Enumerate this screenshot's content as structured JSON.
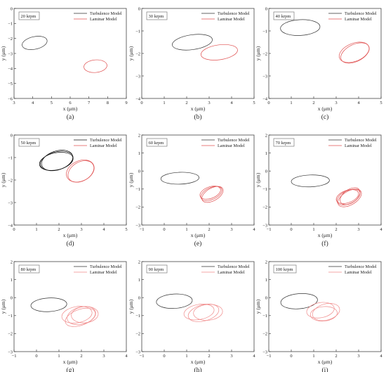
{
  "chart_data": [
    {
      "type": "line",
      "letter": "(a)",
      "speed": "20 krpm",
      "xlabel": "x (μm)",
      "ylabel": "y (μm)",
      "xlim": [
        3,
        9
      ],
      "ylim": [
        -6,
        0
      ],
      "xticks": [
        3,
        4,
        5,
        6,
        7,
        8,
        9
      ],
      "yticks": [
        0,
        -1,
        -2,
        -3,
        -4,
        -5,
        -6
      ],
      "series": [
        {
          "name": "Turbulence Model",
          "color": "#333333",
          "orbits": [
            {
              "cx": 4.1,
              "cy": -2.3,
              "rx": 0.68,
              "ry": 0.42,
              "rot": -12
            }
          ]
        },
        {
          "name": "Laminar Model",
          "color": "#e05050",
          "orbits": [
            {
              "cx": 7.35,
              "cy": -3.85,
              "rx": 0.62,
              "ry": 0.42,
              "rot": -5
            }
          ]
        }
      ]
    },
    {
      "type": "line",
      "letter": "(b)",
      "speed": "30 krpm",
      "xlabel": "x (μm)",
      "ylabel": "y (μm)",
      "xlim": [
        0,
        5
      ],
      "ylim": [
        -4,
        0
      ],
      "xticks": [
        0,
        1,
        2,
        3,
        4,
        5
      ],
      "yticks": [
        0,
        -1,
        -2,
        -3,
        -4
      ],
      "series": [
        {
          "name": "Turbulence Model",
          "color": "#333333",
          "orbits": [
            {
              "cx": 2.25,
              "cy": -1.5,
              "rx": 0.9,
              "ry": 0.33,
              "rot": -8
            }
          ]
        },
        {
          "name": "Laminar Model",
          "color": "#e05050",
          "orbits": [
            {
              "cx": 3.45,
              "cy": -1.95,
              "rx": 0.82,
              "ry": 0.33,
              "rot": -8
            }
          ]
        }
      ]
    },
    {
      "type": "line",
      "letter": "(c)",
      "speed": "40 krpm",
      "xlabel": "x (μm)",
      "ylabel": "y (μm)",
      "xlim": [
        0,
        5
      ],
      "ylim": [
        -4,
        0
      ],
      "xticks": [
        0,
        1,
        2,
        3,
        4,
        5
      ],
      "yticks": [
        0,
        -1,
        -2,
        -3,
        -4
      ],
      "series": [
        {
          "name": "Turbulence Model",
          "color": "#333333",
          "orbits": [
            {
              "cx": 1.4,
              "cy": -0.85,
              "rx": 0.88,
              "ry": 0.35,
              "rot": -3
            }
          ]
        },
        {
          "name": "Laminar Model",
          "color": "#e05050",
          "orbits": [
            {
              "cx": 3.8,
              "cy": -1.95,
              "rx": 0.7,
              "ry": 0.4,
              "rot": -22
            },
            {
              "cx": 3.84,
              "cy": -1.98,
              "rx": 0.68,
              "ry": 0.38,
              "rot": -26
            }
          ]
        }
      ]
    },
    {
      "type": "line",
      "letter": "(d)",
      "speed": "50 krpm",
      "xlabel": "x (μm)",
      "ylabel": "y (μm)",
      "xlim": [
        0,
        5
      ],
      "ylim": [
        -4,
        0
      ],
      "xticks": [
        0,
        1,
        2,
        3,
        4,
        5
      ],
      "yticks": [
        0,
        -1,
        -2,
        -3,
        -4
      ],
      "series": [
        {
          "name": "Turbulence Model",
          "color": "#111111",
          "orbits": [
            {
              "cx": 1.9,
              "cy": -1.15,
              "rx": 0.75,
              "ry": 0.4,
              "rot": -15
            },
            {
              "cx": 1.92,
              "cy": -1.13,
              "rx": 0.72,
              "ry": 0.42,
              "rot": -18
            },
            {
              "cx": 1.88,
              "cy": -1.17,
              "rx": 0.76,
              "ry": 0.38,
              "rot": -12
            }
          ]
        },
        {
          "name": "Laminar Model",
          "color": "#e05050",
          "orbits": [
            {
              "cx": 2.95,
              "cy": -1.6,
              "rx": 0.65,
              "ry": 0.45,
              "rot": -25
            },
            {
              "cx": 2.98,
              "cy": -1.62,
              "rx": 0.62,
              "ry": 0.42,
              "rot": -30
            }
          ]
        }
      ]
    },
    {
      "type": "line",
      "letter": "(e)",
      "speed": "60 krpm",
      "xlabel": "x (μm)",
      "ylabel": "y (μm)",
      "xlim": [
        -1,
        4
      ],
      "ylim": [
        -3,
        2
      ],
      "xticks": [
        -1,
        0,
        1,
        2,
        3,
        4
      ],
      "yticks": [
        2,
        1,
        0,
        -1,
        -2,
        -3
      ],
      "series": [
        {
          "name": "Turbulence Model",
          "color": "#333333",
          "orbits": [
            {
              "cx": 0.7,
              "cy": -0.4,
              "rx": 0.85,
              "ry": 0.33,
              "rot": -2
            }
          ]
        },
        {
          "name": "Laminar Model",
          "color": "#e05050",
          "orbits": [
            {
              "cx": 2.1,
              "cy": -1.25,
              "rx": 0.5,
              "ry": 0.33,
              "rot": -25
            },
            {
              "cx": 2.15,
              "cy": -1.3,
              "rx": 0.52,
              "ry": 0.35,
              "rot": -30
            },
            {
              "cx": 2.05,
              "cy": -1.2,
              "rx": 0.48,
              "ry": 0.32,
              "rot": -20
            }
          ]
        }
      ]
    },
    {
      "type": "line",
      "letter": "(f)",
      "speed": "70 krpm",
      "xlabel": "x (μm)",
      "ylabel": "y (μm)",
      "xlim": [
        -1,
        4
      ],
      "ylim": [
        -3,
        2
      ],
      "xticks": [
        -1,
        0,
        1,
        2,
        3,
        4
      ],
      "yticks": [
        2,
        1,
        0,
        -1,
        -2,
        -3
      ],
      "series": [
        {
          "name": "Turbulence Model",
          "color": "#333333",
          "orbits": [
            {
              "cx": 0.85,
              "cy": -0.55,
              "rx": 0.85,
              "ry": 0.33,
              "rot": -2
            }
          ]
        },
        {
          "name": "Laminar Model",
          "color": "#e05050",
          "orbits": [
            {
              "cx": 2.55,
              "cy": -1.45,
              "rx": 0.55,
              "ry": 0.36,
              "rot": -25
            },
            {
              "cx": 2.6,
              "cy": -1.5,
              "rx": 0.58,
              "ry": 0.38,
              "rot": -30
            },
            {
              "cx": 2.5,
              "cy": -1.42,
              "rx": 0.52,
              "ry": 0.34,
              "rot": -20
            },
            {
              "cx": 2.62,
              "cy": -1.4,
              "rx": 0.5,
              "ry": 0.37,
              "rot": -35
            }
          ]
        }
      ]
    },
    {
      "type": "line",
      "letter": "(g)",
      "speed": "80 krpm",
      "xlabel": "x (μm)",
      "ylabel": "y (μm)",
      "xlim": [
        -1,
        4
      ],
      "ylim": [
        -3,
        2
      ],
      "xticks": [
        -1,
        0,
        1,
        2,
        3,
        4
      ],
      "yticks": [
        2,
        1,
        0,
        -1,
        -2,
        -3
      ],
      "series": [
        {
          "name": "Turbulence Model",
          "color": "#333333",
          "orbits": [
            {
              "cx": 0.55,
              "cy": -0.4,
              "rx": 0.8,
              "ry": 0.38,
              "rot": -3
            }
          ]
        },
        {
          "name": "Laminar Model",
          "color": "#f08a8a",
          "orbits": [
            {
              "cx": 1.8,
              "cy": -0.95,
              "rx": 0.68,
              "ry": 0.45,
              "rot": -10
            },
            {
              "cx": 2.0,
              "cy": -1.0,
              "rx": 0.65,
              "ry": 0.48,
              "rot": -15
            },
            {
              "cx": 2.15,
              "cy": -0.95,
              "rx": 0.6,
              "ry": 0.45,
              "rot": -5
            },
            {
              "cx": 1.95,
              "cy": -1.1,
              "rx": 0.7,
              "ry": 0.44,
              "rot": -20
            }
          ]
        }
      ]
    },
    {
      "type": "line",
      "letter": "(h)",
      "speed": "90 krpm",
      "xlabel": "x (μm)",
      "ylabel": "y (μm)",
      "xlim": [
        -1,
        4
      ],
      "ylim": [
        -3,
        2
      ],
      "xticks": [
        -1,
        0,
        1,
        2,
        3,
        4
      ],
      "yticks": [
        2,
        1,
        0,
        -1,
        -2,
        -3
      ],
      "series": [
        {
          "name": "Turbulence Model",
          "color": "#333333",
          "orbits": [
            {
              "cx": 0.45,
              "cy": -0.2,
              "rx": 0.8,
              "ry": 0.4,
              "rot": -3
            }
          ]
        },
        {
          "name": "Laminar Model",
          "color": "#f08a8a",
          "orbits": [
            {
              "cx": 1.55,
              "cy": -0.8,
              "rx": 0.68,
              "ry": 0.42,
              "rot": -10
            },
            {
              "cx": 1.75,
              "cy": -0.85,
              "rx": 0.7,
              "ry": 0.45,
              "rot": -15
            },
            {
              "cx": 1.95,
              "cy": -0.82,
              "rx": 0.65,
              "ry": 0.44,
              "rot": -5
            }
          ]
        }
      ]
    },
    {
      "type": "line",
      "letter": "(i)",
      "speed": "100 krpm",
      "xlabel": "x (μm)",
      "ylabel": "y (μm)",
      "xlim": [
        -1,
        4
      ],
      "ylim": [
        -3,
        2
      ],
      "xticks": [
        -1,
        0,
        1,
        2,
        3,
        4
      ],
      "yticks": [
        2,
        1,
        0,
        -1,
        -2,
        -3
      ],
      "series": [
        {
          "name": "Turbulence Model",
          "color": "#333333",
          "orbits": [
            {
              "cx": 0.35,
              "cy": -0.2,
              "rx": 0.82,
              "ry": 0.42,
              "rot": -5
            }
          ]
        },
        {
          "name": "Laminar Model",
          "color": "#f08a8a",
          "orbits": [
            {
              "cx": 1.3,
              "cy": -0.7,
              "rx": 0.62,
              "ry": 0.42,
              "rot": -10
            },
            {
              "cx": 1.55,
              "cy": -0.8,
              "rx": 0.62,
              "ry": 0.45,
              "rot": -15
            },
            {
              "cx": 1.45,
              "cy": -0.9,
              "rx": 0.6,
              "ry": 0.4,
              "rot": -5
            }
          ]
        }
      ]
    }
  ]
}
